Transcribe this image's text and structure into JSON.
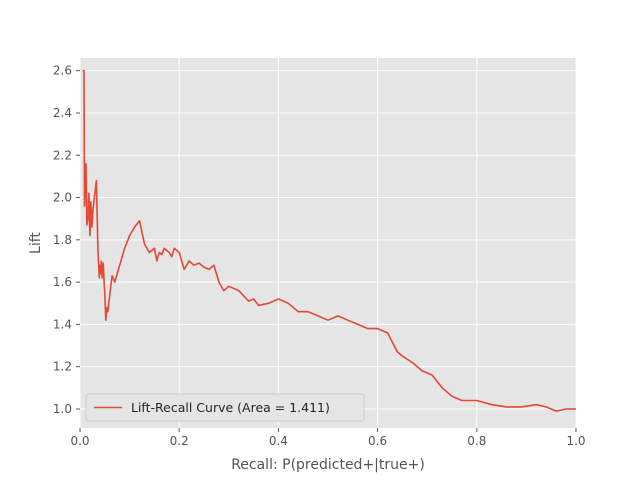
{
  "chart_data": {
    "type": "line",
    "title": "",
    "xlabel": "Recall: P(predicted+|true+)",
    "ylabel": "Lift",
    "xlim": [
      0.0,
      1.0
    ],
    "ylim": [
      0.91,
      2.66
    ],
    "xticks": [
      0.0,
      0.2,
      0.4,
      0.6,
      0.8,
      1.0
    ],
    "xtick_labels": [
      "0.0",
      "0.2",
      "0.4",
      "0.6",
      "0.8",
      "1.0"
    ],
    "yticks": [
      1.0,
      1.2,
      1.4,
      1.6,
      1.8,
      2.0,
      2.2,
      2.4,
      2.6
    ],
    "ytick_labels": [
      "1.0",
      "1.2",
      "1.4",
      "1.6",
      "1.8",
      "2.0",
      "2.2",
      "2.4",
      "2.6"
    ],
    "grid": true,
    "legend_position": "lower-left",
    "colors": {
      "series": "#E24A33",
      "plot_background": "#E5E5E5",
      "grid": "#FFFFFF",
      "text": "#555555"
    },
    "series": [
      {
        "name": "Lift-Recall Curve  (Area = 1.411)",
        "x": [
          0.005,
          0.008,
          0.009,
          0.012,
          0.014,
          0.016,
          0.018,
          0.02,
          0.022,
          0.024,
          0.026,
          0.028,
          0.03,
          0.033,
          0.036,
          0.039,
          0.04,
          0.042,
          0.043,
          0.045,
          0.047,
          0.049,
          0.05,
          0.052,
          0.054,
          0.056,
          0.058,
          0.06,
          0.061,
          0.063,
          0.065,
          0.07,
          0.075,
          0.08,
          0.085,
          0.09,
          0.095,
          0.1,
          0.11,
          0.12,
          0.13,
          0.14,
          0.15,
          0.155,
          0.157,
          0.16,
          0.165,
          0.17,
          0.18,
          0.185,
          0.19,
          0.2,
          0.21,
          0.22,
          0.23,
          0.24,
          0.25,
          0.26,
          0.27,
          0.28,
          0.29,
          0.3,
          0.32,
          0.34,
          0.35,
          0.36,
          0.38,
          0.4,
          0.42,
          0.44,
          0.46,
          0.48,
          0.5,
          0.52,
          0.54,
          0.56,
          0.58,
          0.6,
          0.62,
          0.64,
          0.65,
          0.67,
          0.69,
          0.71,
          0.73,
          0.75,
          0.77,
          0.8,
          0.83,
          0.86,
          0.89,
          0.92,
          0.94,
          0.96,
          0.98,
          1.0
        ],
        "y": [
          2.6,
          2.6,
          1.96,
          2.16,
          1.87,
          1.9,
          2.02,
          1.82,
          1.98,
          1.86,
          1.94,
          1.98,
          2.02,
          2.08,
          1.76,
          1.62,
          1.68,
          1.64,
          1.7,
          1.62,
          1.69,
          1.58,
          1.55,
          1.42,
          1.48,
          1.46,
          1.5,
          1.54,
          1.56,
          1.6,
          1.63,
          1.6,
          1.64,
          1.68,
          1.72,
          1.76,
          1.79,
          1.82,
          1.86,
          1.89,
          1.78,
          1.74,
          1.76,
          1.7,
          1.72,
          1.74,
          1.73,
          1.76,
          1.74,
          1.72,
          1.76,
          1.74,
          1.66,
          1.7,
          1.68,
          1.69,
          1.67,
          1.66,
          1.68,
          1.6,
          1.56,
          1.58,
          1.56,
          1.51,
          1.52,
          1.49,
          1.5,
          1.52,
          1.5,
          1.46,
          1.46,
          1.44,
          1.42,
          1.44,
          1.42,
          1.4,
          1.38,
          1.38,
          1.36,
          1.27,
          1.25,
          1.22,
          1.18,
          1.16,
          1.1,
          1.06,
          1.04,
          1.04,
          1.02,
          1.01,
          1.01,
          1.02,
          1.01,
          0.99,
          1.0,
          1.0
        ]
      }
    ]
  }
}
